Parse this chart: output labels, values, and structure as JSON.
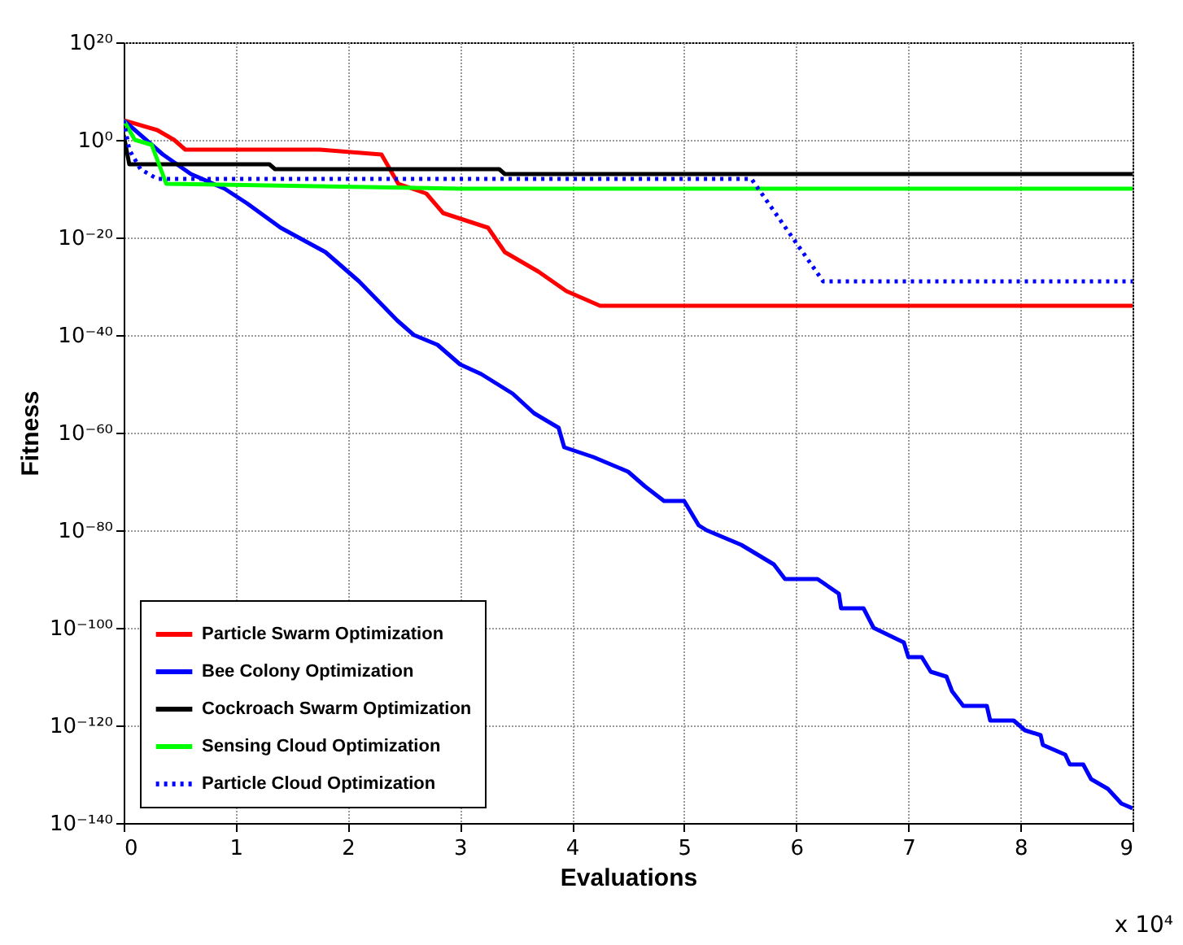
{
  "chart_data": {
    "type": "line",
    "xlabel": "Evaluations",
    "ylabel": "Fitness",
    "annotations": [
      "x 10⁴"
    ],
    "log": "y",
    "grid": true,
    "legend": "bottom left",
    "xlim": [
      0,
      9
    ],
    "xticks": [
      0,
      1,
      2,
      3,
      4,
      5,
      6,
      7,
      8,
      9
    ],
    "ylim": [
      1e-140,
      1e+20
    ],
    "yticks": [
      {
        "value": 1e+20,
        "label": "10²⁰"
      },
      {
        "value": 1,
        "label": "10⁰"
      },
      {
        "value": 1e-20,
        "label": "10⁻²⁰"
      },
      {
        "value": 1e-40,
        "label": "10⁻⁴⁰"
      },
      {
        "value": 1e-60,
        "label": "10⁻⁶⁰"
      },
      {
        "value": 1e-80,
        "label": "10⁻⁸⁰"
      },
      {
        "value": 1e-100,
        "label": "10⁻¹⁰⁰"
      },
      {
        "value": 1e-120,
        "label": "10⁻¹²⁰"
      },
      {
        "value": 1e-140,
        "label": "10⁻¹⁴⁰"
      }
    ],
    "series": [
      {
        "name": "Particle Swarm Optimization",
        "color": "#ff0000",
        "line_style": "solid",
        "x": [
          0,
          0.3,
          0.45,
          0.55,
          1.75,
          2.3,
          2.45,
          2.7,
          2.85,
          3.25,
          3.4,
          3.7,
          3.95,
          4.25,
          9
        ],
        "values": [
          10000.0,
          100.0,
          1,
          0.01,
          0.01,
          0.001,
          1e-09,
          1e-11,
          1e-15,
          1e-18,
          1e-23,
          1e-27,
          1e-31,
          1e-34,
          1e-34
        ]
      },
      {
        "name": "Bee Colony Optimization",
        "color": "#0000ff",
        "line_style": "solid",
        "x": [
          0,
          0.35,
          0.6,
          0.9,
          1.1,
          1.4,
          1.8,
          2.1,
          2.44,
          2.59,
          2.8,
          3.0,
          3.19,
          3.47,
          3.66,
          3.88,
          3.93,
          4.19,
          4.5,
          4.65,
          4.82,
          5.0,
          5.13,
          5.2,
          5.51,
          5.8,
          5.9,
          6.19,
          6.38,
          6.4,
          6.6,
          6.69,
          6.96,
          7.0,
          7.12,
          7.2,
          7.34,
          7.39,
          7.49,
          7.7,
          7.73,
          7.94,
          8.04,
          8.18,
          8.2,
          8.4,
          8.44,
          8.56,
          8.63,
          8.78,
          8.9,
          9.0
        ],
        "values": [
          10000.0,
          0.001,
          1e-07,
          1e-10,
          1e-13,
          1e-18,
          1e-23,
          1e-29,
          1e-37,
          1e-40,
          1e-42,
          1e-46,
          1e-48,
          1e-52,
          1e-56,
          1e-59,
          1e-63,
          1e-65,
          1e-68,
          1e-71,
          1e-74,
          1e-74,
          1e-79,
          1e-80,
          1e-83,
          1e-87,
          1e-90,
          1e-90,
          1e-93,
          1e-96,
          1e-96,
          1e-100,
          1e-103,
          1e-106,
          1e-106,
          1e-109,
          1e-110,
          1e-113,
          1e-116,
          1e-116,
          1e-119,
          1e-119,
          1e-121,
          1e-122,
          1e-124,
          1e-126,
          1e-128,
          1e-128,
          1e-131,
          1e-133,
          1e-136,
          1e-137
        ]
      },
      {
        "name": "Cockroach Swarm Optimization",
        "color": "#000000",
        "line_style": "solid",
        "x": [
          0,
          0.05,
          1.3,
          1.35,
          3.35,
          3.4,
          9
        ],
        "values": [
          10.0,
          1e-05,
          1e-05,
          1e-06,
          1e-06,
          1e-07,
          1e-07
        ]
      },
      {
        "name": "Sensing Cloud Optimization",
        "color": "#00ff00",
        "line_style": "solid",
        "x": [
          0,
          0.1,
          0.25,
          0.38,
          3.0,
          9
        ],
        "values": [
          10000.0,
          1,
          0.1,
          1e-09,
          1e-10,
          1e-10
        ]
      },
      {
        "name": "Particle Cloud Optimization",
        "color": "#0000ff",
        "line_style": "dotted",
        "x": [
          0,
          0.05,
          0.15,
          0.3,
          5.6,
          6.24,
          9
        ],
        "values": [
          10000.0,
          0.01,
          1e-06,
          1e-08,
          1e-08,
          1e-29,
          1e-29
        ]
      }
    ]
  }
}
